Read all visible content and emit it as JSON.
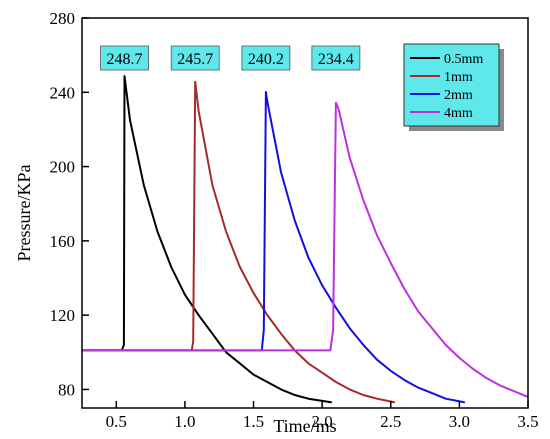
{
  "chart_data": {
    "type": "line",
    "title": "",
    "xlabel": "Time/ms",
    "ylabel": "Pressure/KPa",
    "xlim": [
      0.25,
      3.5
    ],
    "ylim": [
      70,
      280
    ],
    "x_ticks": [
      0.5,
      1.0,
      1.5,
      2.0,
      2.5,
      3.0,
      3.5
    ],
    "x_tick_labels": [
      "0.5",
      "1.0",
      "1.5",
      "2.0",
      "2.5",
      "3.0",
      "3.5"
    ],
    "y_ticks": [
      80,
      120,
      160,
      200,
      240,
      280
    ],
    "y_tick_labels": [
      "80",
      "120",
      "160",
      "200",
      "240",
      "280"
    ],
    "grid": false,
    "legend_position": "top-right",
    "series": [
      {
        "name": "0.5mm",
        "color": "#000000",
        "x": [
          0.25,
          0.54,
          0.555,
          0.56,
          0.6,
          0.7,
          0.8,
          0.9,
          1.0,
          1.1,
          1.2,
          1.3,
          1.4,
          1.5,
          1.6,
          1.7,
          1.8,
          1.9,
          2.07
        ],
        "y": [
          101,
          101,
          104,
          248.7,
          225,
          190,
          165,
          146,
          131,
          120,
          110,
          100,
          94,
          88,
          84,
          80,
          77,
          75,
          73
        ]
      },
      {
        "name": "1mm",
        "color": "#a52a2a",
        "x": [
          0.25,
          1.05,
          1.06,
          1.075,
          1.1,
          1.2,
          1.3,
          1.4,
          1.5,
          1.6,
          1.7,
          1.8,
          1.9,
          2.0,
          2.1,
          2.2,
          2.3,
          2.4,
          2.53
        ],
        "y": [
          101,
          101,
          106,
          245.7,
          230,
          190,
          165,
          146,
          132,
          120,
          110,
          101,
          94,
          89,
          84,
          80,
          77,
          75,
          73
        ]
      },
      {
        "name": "2mm",
        "color": "#1010e0",
        "x": [
          0.25,
          1.56,
          1.575,
          1.59,
          1.6,
          1.7,
          1.8,
          1.9,
          2.0,
          2.1,
          2.2,
          2.3,
          2.4,
          2.5,
          2.6,
          2.7,
          2.8,
          2.9,
          3.04
        ],
        "y": [
          101,
          101,
          112,
          240.2,
          235,
          197,
          171,
          151,
          136,
          124,
          113,
          104,
          96,
          90,
          85,
          81,
          78,
          75,
          73
        ]
      },
      {
        "name": "4mm",
        "color": "#c030e0",
        "x": [
          0.25,
          2.06,
          2.08,
          2.1,
          2.12,
          2.2,
          2.3,
          2.4,
          2.5,
          2.6,
          2.7,
          2.8,
          2.9,
          3.0,
          3.1,
          3.2,
          3.3,
          3.4,
          3.5
        ],
        "y": [
          101,
          101,
          112,
          234.4,
          231,
          205,
          182,
          163,
          148,
          134,
          122,
          113,
          104,
          97,
          91,
          86,
          82,
          79,
          76
        ]
      }
    ],
    "annotations": [
      {
        "text": "248.7",
        "x": 0.56,
        "y": 248.7
      },
      {
        "text": "245.7",
        "x": 1.075,
        "y": 245.7
      },
      {
        "text": "240.2",
        "x": 1.59,
        "y": 240.2
      },
      {
        "text": "234.4",
        "x": 2.1,
        "y": 234.4
      }
    ],
    "colors": {
      "annotation_fill": "#5ee8ec",
      "legend_fill": "#5ee8ec",
      "legend_shadow": "#8a8a8a"
    }
  }
}
